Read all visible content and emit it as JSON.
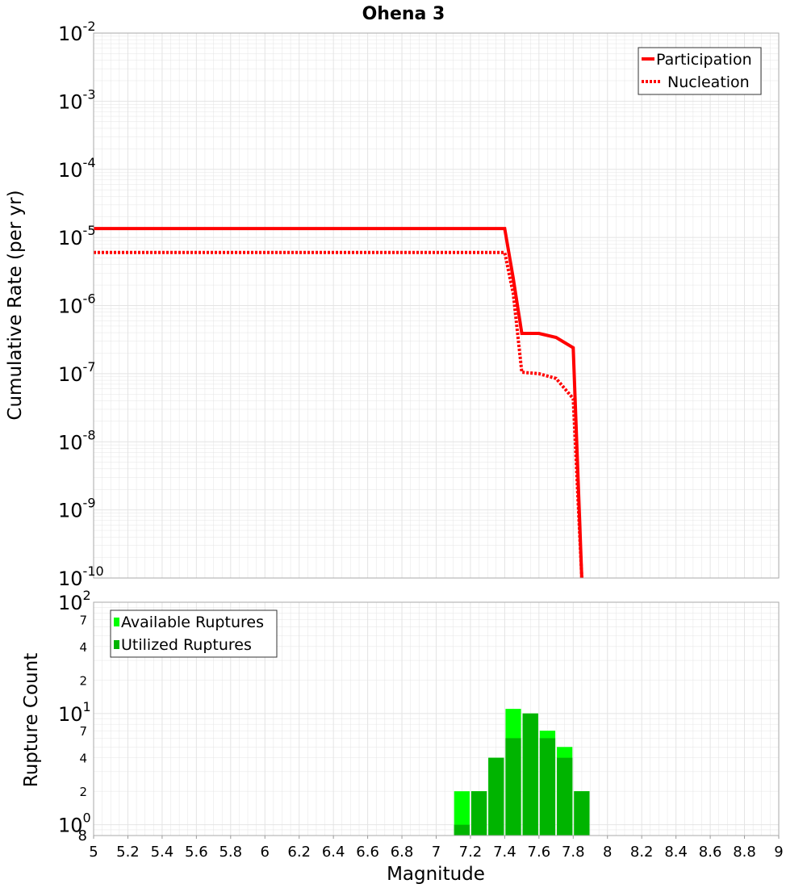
{
  "title": "Ohena 3",
  "colors": {
    "participation": "#ff0000",
    "nucleation": "#ff0000",
    "available": "#00ff00",
    "utilized": "#00b400",
    "grid": "#e4e4e4",
    "frame": "#aaaaaa"
  },
  "chart_data": [
    {
      "type": "line",
      "title": "Ohena 3",
      "ylabel": "Cumulative Rate (per yr)",
      "yscale": "log",
      "xlim": [
        5,
        9
      ],
      "ylim": [
        1e-10,
        0.01
      ],
      "grid": true,
      "legend_position": "top-right",
      "y_ticks": [
        {
          "base": "10",
          "exp": "-2"
        },
        {
          "base": "10",
          "exp": "-3"
        },
        {
          "base": "10",
          "exp": "-4"
        },
        {
          "base": "10",
          "exp": "-5"
        },
        {
          "base": "10",
          "exp": "-6"
        },
        {
          "base": "10",
          "exp": "-7"
        },
        {
          "base": "10",
          "exp": "-8"
        },
        {
          "base": "10",
          "exp": "-9"
        },
        {
          "base": "10",
          "exp": "-10"
        }
      ],
      "series": [
        {
          "name": "Participation",
          "style": "solid",
          "x": [
            5.0,
            7.4,
            7.45,
            7.5,
            7.6,
            7.7,
            7.8,
            7.85
          ],
          "y": [
            1.35e-05,
            1.35e-05,
            2.5e-06,
            3.9e-07,
            3.9e-07,
            3.4e-07,
            2.4e-07,
            1e-10
          ]
        },
        {
          "name": "Nucleation",
          "style": "dotted",
          "x": [
            5.0,
            7.4,
            7.45,
            7.5,
            7.6,
            7.7,
            7.8,
            7.85
          ],
          "y": [
            6e-06,
            6e-06,
            1.5e-06,
            1.05e-07,
            1e-07,
            8.5e-08,
            4.3e-08,
            1e-10
          ]
        }
      ]
    },
    {
      "type": "bar",
      "ylabel": "Rupture Count",
      "xlabel": "Magnitude",
      "yscale": "log",
      "xlim": [
        5,
        9
      ],
      "ylim": [
        0.8,
        100
      ],
      "grid": true,
      "legend_position": "top-left",
      "x_ticks": [
        "5",
        "5.2",
        "5.4",
        "5.6",
        "5.8",
        "6",
        "6.2",
        "6.4",
        "6.6",
        "6.8",
        "7",
        "7.2",
        "7.4",
        "7.6",
        "7.8",
        "8",
        "8.2",
        "8.4",
        "8.6",
        "8.8",
        "9"
      ],
      "y_ticks": [
        {
          "value": 100,
          "base": "10",
          "exp": "2",
          "minor": false
        },
        {
          "value": 70,
          "label": "7",
          "minor": true
        },
        {
          "value": 40,
          "label": "4",
          "minor": true
        },
        {
          "value": 20,
          "label": "2",
          "minor": true
        },
        {
          "value": 10,
          "base": "10",
          "exp": "1",
          "minor": false
        },
        {
          "value": 7,
          "label": "7",
          "minor": true
        },
        {
          "value": 4,
          "label": "4",
          "minor": true
        },
        {
          "value": 2,
          "label": "2",
          "minor": true
        },
        {
          "value": 1,
          "base": "10",
          "exp": "0",
          "minor": false
        },
        {
          "value": 0.8,
          "label": "8",
          "minor": true
        }
      ],
      "bar_width": 0.1,
      "categories": [
        7.15,
        7.25,
        7.35,
        7.45,
        7.55,
        7.65,
        7.75,
        7.85
      ],
      "series": [
        {
          "name": "Available Ruptures",
          "values": [
            2,
            2,
            4,
            11,
            10,
            7,
            5,
            2
          ]
        },
        {
          "name": "Utilized Ruptures",
          "values": [
            1,
            2,
            4,
            6,
            10,
            6,
            4,
            2
          ]
        }
      ]
    }
  ]
}
